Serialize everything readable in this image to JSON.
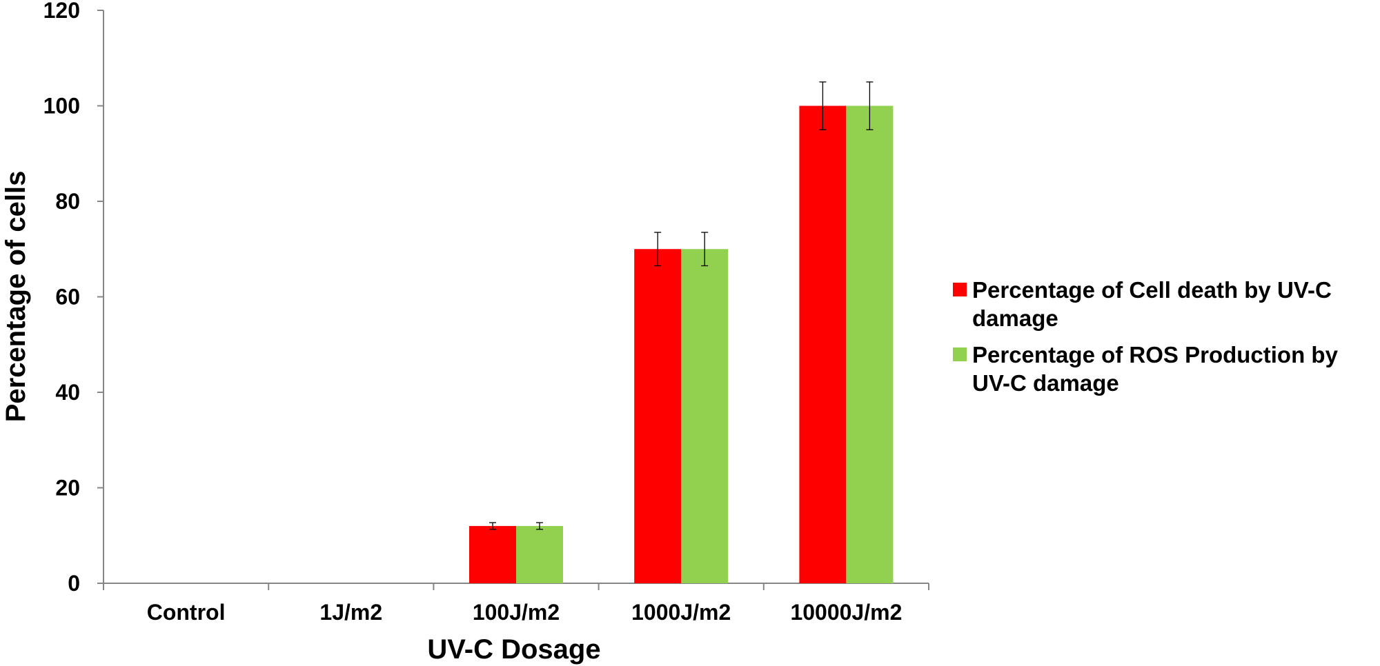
{
  "chart_data": {
    "type": "bar",
    "title": "",
    "xlabel": "UV-C Dosage",
    "ylabel": "Percentage of cells",
    "ylim": [
      0,
      120
    ],
    "yticks": [
      0,
      20,
      40,
      60,
      80,
      100,
      120
    ],
    "yticklabels": [
      "0",
      "20",
      "40",
      "60",
      "80",
      "100",
      "120"
    ],
    "categories": [
      "Control",
      "1J/m2",
      "100J/m2",
      "1000J/m2",
      "10000J/m2"
    ],
    "series": [
      {
        "name": "Percentage of Cell death by UV-C damage",
        "legend_lines": [
          "Percentage of Cell death by UV-C",
          "damage"
        ],
        "color": "#ff0000",
        "values": [
          0,
          0,
          12,
          70,
          100
        ],
        "errors": [
          0,
          0,
          0.7,
          3.5,
          5
        ]
      },
      {
        "name": "Percentage of ROS Production by UV-C damage",
        "legend_lines": [
          "Percentage of ROS Production by",
          "UV-C damage"
        ],
        "color": "#92d050",
        "values": [
          0,
          0,
          12,
          70,
          100
        ],
        "errors": [
          0,
          0,
          0.7,
          3.5,
          5
        ]
      }
    ],
    "grid": false,
    "legend_position": "right"
  }
}
